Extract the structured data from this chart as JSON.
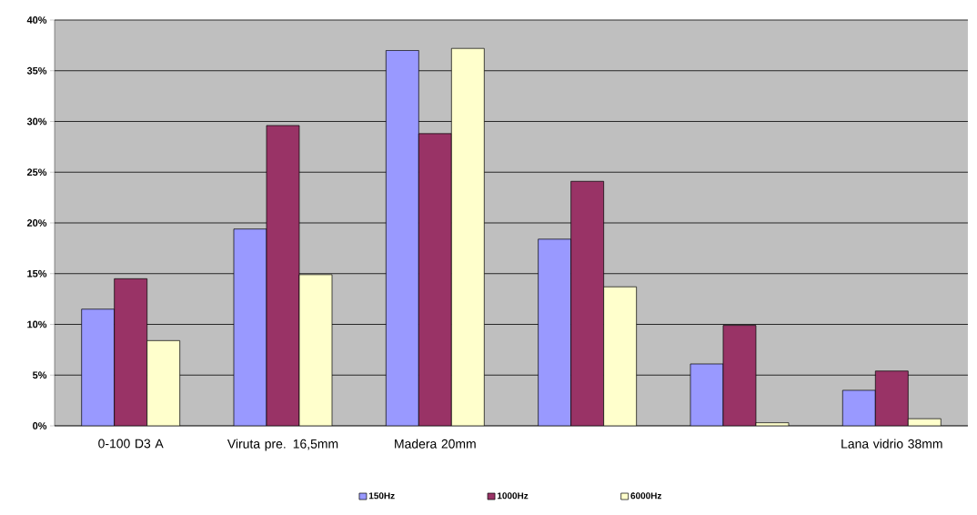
{
  "chart_data": {
    "type": "bar",
    "categories": [
      "0-100 D3 A",
      "Viruta pre. 16,5mm",
      "Madera 20mm",
      null,
      null,
      "Lana vidrio 38mm"
    ],
    "series": [
      {
        "name": "150Hz",
        "color": "#9999ff",
        "values": [
          11.5,
          19.4,
          37.0,
          18.4,
          6.1,
          3.5
        ]
      },
      {
        "name": "1000Hz",
        "color": "#993366",
        "values": [
          14.5,
          29.6,
          28.8,
          24.1,
          9.9,
          5.4
        ]
      },
      {
        "name": "6000Hz",
        "color": "#ffffcc",
        "values": [
          8.4,
          14.9,
          37.2,
          13.7,
          0.3,
          0.7
        ]
      }
    ],
    "ylim": [
      0,
      40
    ],
    "yticks": [
      {
        "value": 0,
        "label": "0%"
      },
      {
        "value": 5,
        "label": "5%"
      },
      {
        "value": 10,
        "label": "10%"
      },
      {
        "value": 15,
        "label": "15%"
      },
      {
        "value": 20,
        "label": "20%"
      },
      {
        "value": 25,
        "label": "25%"
      },
      {
        "value": 30,
        "label": "30%"
      },
      {
        "value": 35,
        "label": "35%"
      },
      {
        "value": 40,
        "label": "40%"
      }
    ],
    "grid": "y",
    "legend": "bottom"
  }
}
